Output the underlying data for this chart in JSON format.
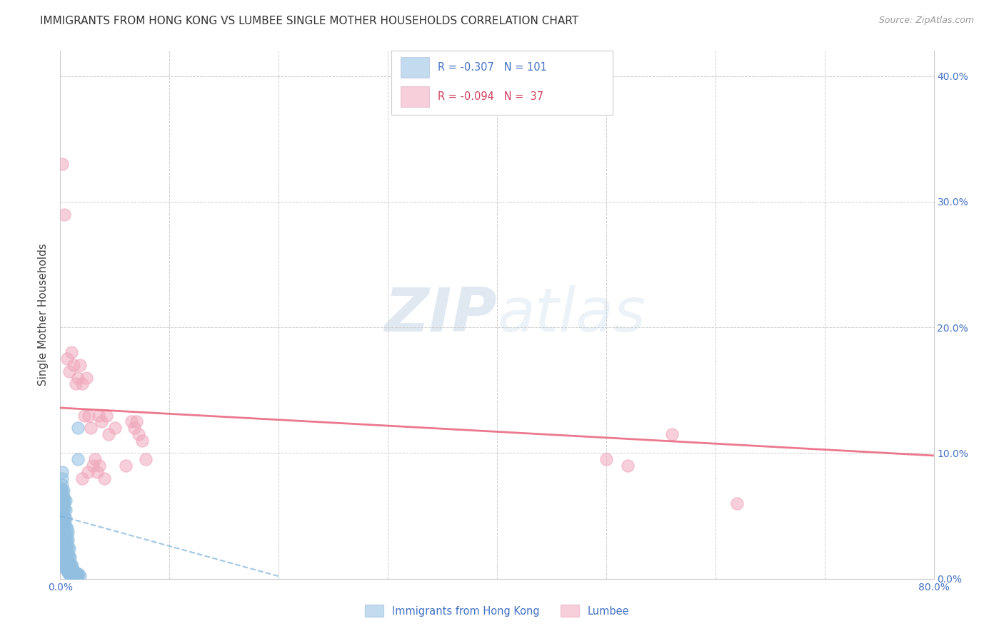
{
  "title": "IMMIGRANTS FROM HONG KONG VS LUMBEE SINGLE MOTHER HOUSEHOLDS CORRELATION CHART",
  "source": "Source: ZipAtlas.com",
  "ylabel": "Single Mother Households",
  "title_fontsize": 11,
  "source_fontsize": 9,
  "background_color": "#ffffff",
  "watermark_zip": "ZIP",
  "watermark_atlas": "atlas",
  "legend_r_blue": "-0.307",
  "legend_n_blue": "101",
  "legend_r_pink": "-0.094",
  "legend_n_pink": "37",
  "legend_label_blue": "Immigrants from Hong Kong",
  "legend_label_pink": "Lumbee",
  "blue_color": "#92bfe0",
  "pink_color": "#f0a8bc",
  "blue_line_color": "#7ab0d8",
  "pink_line_color": "#e8607a",
  "text_color_blue": "#4472c4",
  "text_color_pink": "#d04060",
  "axis_label_color": "#4472c4",
  "xlim": [
    0.0,
    0.8
  ],
  "ylim": [
    0.0,
    0.42
  ],
  "xticks": [
    0.0,
    0.1,
    0.2,
    0.3,
    0.4,
    0.5,
    0.6,
    0.7,
    0.8
  ],
  "yticks": [
    0.0,
    0.1,
    0.2,
    0.3,
    0.4
  ],
  "blue_scatter_x": [
    0.001,
    0.001,
    0.001,
    0.001,
    0.001,
    0.001,
    0.001,
    0.001,
    0.001,
    0.001,
    0.002,
    0.002,
    0.002,
    0.002,
    0.002,
    0.002,
    0.002,
    0.002,
    0.002,
    0.002,
    0.002,
    0.002,
    0.002,
    0.002,
    0.002,
    0.002,
    0.003,
    0.003,
    0.003,
    0.003,
    0.003,
    0.003,
    0.003,
    0.003,
    0.003,
    0.003,
    0.003,
    0.003,
    0.004,
    0.004,
    0.004,
    0.004,
    0.004,
    0.004,
    0.004,
    0.004,
    0.004,
    0.004,
    0.004,
    0.005,
    0.005,
    0.005,
    0.005,
    0.005,
    0.005,
    0.005,
    0.005,
    0.005,
    0.005,
    0.006,
    0.006,
    0.006,
    0.006,
    0.006,
    0.006,
    0.006,
    0.007,
    0.007,
    0.007,
    0.007,
    0.007,
    0.007,
    0.007,
    0.008,
    0.008,
    0.008,
    0.008,
    0.008,
    0.009,
    0.009,
    0.009,
    0.009,
    0.01,
    0.01,
    0.01,
    0.011,
    0.011,
    0.011,
    0.012,
    0.012,
    0.013,
    0.013,
    0.014,
    0.014,
    0.015,
    0.015,
    0.016,
    0.017,
    0.018,
    0.016,
    0.016
  ],
  "blue_scatter_y": [
    0.03,
    0.035,
    0.04,
    0.045,
    0.05,
    0.055,
    0.058,
    0.062,
    0.068,
    0.072,
    0.02,
    0.025,
    0.03,
    0.033,
    0.038,
    0.042,
    0.046,
    0.05,
    0.054,
    0.058,
    0.062,
    0.066,
    0.07,
    0.075,
    0.08,
    0.085,
    0.015,
    0.02,
    0.025,
    0.03,
    0.035,
    0.04,
    0.045,
    0.05,
    0.055,
    0.06,
    0.065,
    0.07,
    0.01,
    0.015,
    0.02,
    0.025,
    0.03,
    0.035,
    0.04,
    0.045,
    0.05,
    0.056,
    0.062,
    0.008,
    0.012,
    0.018,
    0.024,
    0.03,
    0.036,
    0.042,
    0.048,
    0.055,
    0.062,
    0.006,
    0.01,
    0.016,
    0.022,
    0.028,
    0.034,
    0.04,
    0.005,
    0.009,
    0.014,
    0.019,
    0.025,
    0.031,
    0.037,
    0.004,
    0.008,
    0.013,
    0.018,
    0.024,
    0.003,
    0.007,
    0.012,
    0.017,
    0.003,
    0.007,
    0.011,
    0.002,
    0.006,
    0.01,
    0.002,
    0.006,
    0.002,
    0.005,
    0.002,
    0.005,
    0.002,
    0.004,
    0.002,
    0.004,
    0.002,
    0.095,
    0.12
  ],
  "pink_scatter_x": [
    0.002,
    0.004,
    0.006,
    0.008,
    0.01,
    0.012,
    0.014,
    0.016,
    0.018,
    0.02,
    0.022,
    0.024,
    0.026,
    0.028,
    0.03,
    0.032,
    0.034,
    0.036,
    0.038,
    0.04,
    0.042,
    0.044,
    0.05,
    0.06,
    0.065,
    0.068,
    0.07,
    0.072,
    0.075,
    0.078,
    0.035,
    0.025,
    0.02,
    0.5,
    0.52,
    0.56,
    0.62
  ],
  "pink_scatter_y": [
    0.33,
    0.29,
    0.175,
    0.165,
    0.18,
    0.17,
    0.155,
    0.16,
    0.17,
    0.155,
    0.13,
    0.16,
    0.13,
    0.12,
    0.09,
    0.095,
    0.085,
    0.09,
    0.125,
    0.08,
    0.13,
    0.115,
    0.12,
    0.09,
    0.125,
    0.12,
    0.125,
    0.115,
    0.11,
    0.095,
    0.13,
    0.085,
    0.08,
    0.095,
    0.09,
    0.115,
    0.06
  ],
  "blue_trend_x": [
    0.0,
    0.2
  ],
  "blue_trend_y": [
    0.05,
    0.002
  ],
  "pink_trend_x": [
    0.0,
    0.8
  ],
  "pink_trend_y": [
    0.136,
    0.098
  ]
}
